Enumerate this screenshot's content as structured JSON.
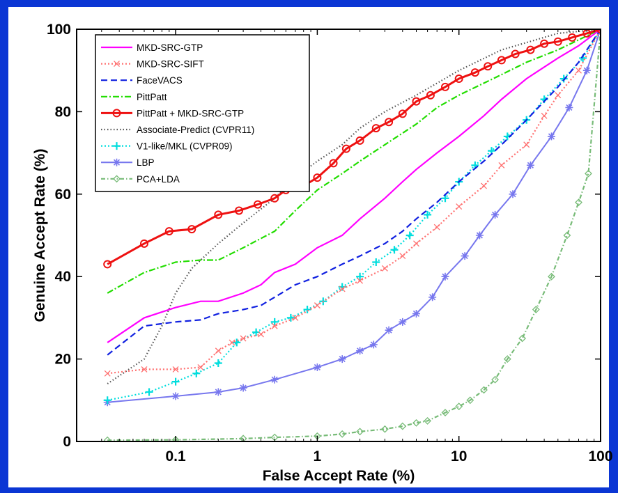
{
  "colors": {
    "frame": "#0b36d4",
    "panel": "#ffffff"
  },
  "chart_data": {
    "type": "line",
    "x_scale": "log",
    "xlabel": "False Accept Rate (%)",
    "ylabel": "Genuine Accept Rate (%)",
    "xlim": [
      0.02,
      100
    ],
    "ylim": [
      0,
      100
    ],
    "x_ticks": [
      0.1,
      1,
      10,
      100
    ],
    "x_tick_labels": [
      "0.1",
      "1",
      "10",
      "100"
    ],
    "y_ticks": [
      0,
      20,
      40,
      60,
      80,
      100
    ],
    "y_tick_labels": [
      "0",
      "20",
      "40",
      "60",
      "80",
      "100"
    ],
    "grid": false,
    "legend_position": "top-left",
    "series": [
      {
        "name": "MKD-SRC-GTP",
        "color": "#ff00ff",
        "dash": "",
        "marker": "none",
        "points": [
          [
            0.033,
            24
          ],
          [
            0.06,
            30
          ],
          [
            0.1,
            32.5
          ],
          [
            0.15,
            34
          ],
          [
            0.2,
            34
          ],
          [
            0.3,
            36
          ],
          [
            0.4,
            38
          ],
          [
            0.5,
            41
          ],
          [
            0.7,
            43
          ],
          [
            1,
            47
          ],
          [
            1.5,
            50
          ],
          [
            2,
            54
          ],
          [
            3,
            59
          ],
          [
            4,
            63
          ],
          [
            5,
            66
          ],
          [
            7,
            70
          ],
          [
            10,
            74
          ],
          [
            15,
            79
          ],
          [
            20,
            83
          ],
          [
            30,
            88
          ],
          [
            50,
            93
          ],
          [
            70,
            96
          ],
          [
            100,
            100
          ]
        ]
      },
      {
        "name": "MKD-SRC-SIFT",
        "color": "#ff7070",
        "dash": "2,3",
        "marker": "x",
        "points": [
          [
            0.033,
            16.5
          ],
          [
            0.06,
            17.5
          ],
          [
            0.1,
            17.5
          ],
          [
            0.15,
            18
          ],
          [
            0.2,
            22
          ],
          [
            0.25,
            24
          ],
          [
            0.3,
            25
          ],
          [
            0.4,
            26
          ],
          [
            0.5,
            28
          ],
          [
            0.7,
            30
          ],
          [
            1,
            33
          ],
          [
            1.5,
            37
          ],
          [
            2,
            39
          ],
          [
            3,
            42
          ],
          [
            4,
            45
          ],
          [
            5,
            48
          ],
          [
            7,
            52
          ],
          [
            10,
            57
          ],
          [
            15,
            62
          ],
          [
            20,
            67
          ],
          [
            30,
            72
          ],
          [
            40,
            79
          ],
          [
            50,
            84
          ],
          [
            70,
            90
          ],
          [
            100,
            100
          ]
        ]
      },
      {
        "name": "FaceVACS",
        "color": "#1020e0",
        "dash": "9,5",
        "marker": "none",
        "points": [
          [
            0.033,
            21
          ],
          [
            0.06,
            28
          ],
          [
            0.1,
            29
          ],
          [
            0.15,
            29.5
          ],
          [
            0.2,
            31
          ],
          [
            0.3,
            32
          ],
          [
            0.4,
            33
          ],
          [
            0.5,
            35
          ],
          [
            0.7,
            38
          ],
          [
            1,
            40
          ],
          [
            1.5,
            43
          ],
          [
            2,
            45
          ],
          [
            3,
            48
          ],
          [
            4,
            51
          ],
          [
            5,
            54
          ],
          [
            7,
            58
          ],
          [
            10,
            63
          ],
          [
            15,
            68
          ],
          [
            20,
            72
          ],
          [
            30,
            78
          ],
          [
            50,
            86
          ],
          [
            70,
            92
          ],
          [
            100,
            100
          ]
        ]
      },
      {
        "name": "PittPatt",
        "color": "#22dd00",
        "dash": "9,3,2,3",
        "marker": "none",
        "points": [
          [
            0.033,
            36
          ],
          [
            0.06,
            41
          ],
          [
            0.1,
            43.5
          ],
          [
            0.15,
            44
          ],
          [
            0.2,
            44
          ],
          [
            0.3,
            47
          ],
          [
            0.5,
            51
          ],
          [
            0.7,
            56
          ],
          [
            1,
            61
          ],
          [
            1.5,
            65
          ],
          [
            2,
            68
          ],
          [
            3,
            72
          ],
          [
            5,
            77
          ],
          [
            7,
            81
          ],
          [
            10,
            84
          ],
          [
            20,
            89
          ],
          [
            30,
            92
          ],
          [
            50,
            95
          ],
          [
            100,
            100
          ]
        ]
      },
      {
        "name": "PittPatt + MKD-SRC-GTP",
        "color": "#ee1111",
        "dash": "",
        "marker": "circle",
        "points": [
          [
            0.033,
            43
          ],
          [
            0.06,
            48
          ],
          [
            0.09,
            51
          ],
          [
            0.13,
            51.5
          ],
          [
            0.2,
            55
          ],
          [
            0.28,
            56
          ],
          [
            0.38,
            57.5
          ],
          [
            0.5,
            59
          ],
          [
            0.6,
            61
          ],
          [
            0.8,
            62
          ],
          [
            1,
            64
          ],
          [
            1.3,
            67.5
          ],
          [
            1.6,
            71
          ],
          [
            2,
            73
          ],
          [
            2.6,
            76
          ],
          [
            3.2,
            77.5
          ],
          [
            4,
            79.5
          ],
          [
            5,
            82.5
          ],
          [
            6.3,
            84
          ],
          [
            8,
            86
          ],
          [
            10,
            88
          ],
          [
            13,
            89.5
          ],
          [
            16,
            91
          ],
          [
            20,
            92.5
          ],
          [
            25,
            94
          ],
          [
            32,
            95
          ],
          [
            40,
            96.5
          ],
          [
            50,
            97
          ],
          [
            63,
            98
          ],
          [
            80,
            99
          ],
          [
            100,
            100
          ]
        ]
      },
      {
        "name": "Associate-Predict (CVPR11)",
        "color": "#555555",
        "dash": "1.5,3",
        "marker": "none",
        "points": [
          [
            0.033,
            14
          ],
          [
            0.06,
            20
          ],
          [
            0.08,
            28
          ],
          [
            0.1,
            36
          ],
          [
            0.13,
            42
          ],
          [
            0.2,
            48
          ],
          [
            0.3,
            53
          ],
          [
            0.5,
            59
          ],
          [
            0.7,
            64
          ],
          [
            1,
            68
          ],
          [
            1.5,
            72
          ],
          [
            2,
            76
          ],
          [
            3,
            80
          ],
          [
            5,
            84
          ],
          [
            10,
            90
          ],
          [
            20,
            95
          ],
          [
            50,
            99
          ],
          [
            100,
            100
          ]
        ]
      },
      {
        "name": "V1-like/MKL (CVPR09)",
        "color": "#00dddd",
        "dash": "2,3",
        "marker": "plus",
        "points": [
          [
            0.033,
            10
          ],
          [
            0.065,
            12
          ],
          [
            0.1,
            14.5
          ],
          [
            0.14,
            16.5
          ],
          [
            0.2,
            19
          ],
          [
            0.27,
            24
          ],
          [
            0.37,
            26.5
          ],
          [
            0.5,
            29
          ],
          [
            0.65,
            30
          ],
          [
            0.85,
            32
          ],
          [
            1.1,
            34
          ],
          [
            1.5,
            37.5
          ],
          [
            2,
            40
          ],
          [
            2.6,
            43.5
          ],
          [
            3.5,
            46.5
          ],
          [
            4.5,
            50
          ],
          [
            6,
            55
          ],
          [
            8,
            59
          ],
          [
            10,
            63
          ],
          [
            13,
            67
          ],
          [
            17,
            70.5
          ],
          [
            22,
            74
          ],
          [
            30,
            78
          ],
          [
            40,
            83
          ],
          [
            55,
            88
          ],
          [
            75,
            93
          ],
          [
            100,
            100
          ]
        ]
      },
      {
        "name": "LBP",
        "color": "#7777ee",
        "dash": "",
        "marker": "star",
        "points": [
          [
            0.033,
            9.5
          ],
          [
            0.1,
            11
          ],
          [
            0.2,
            12
          ],
          [
            0.3,
            13
          ],
          [
            0.5,
            15
          ],
          [
            1,
            18
          ],
          [
            1.5,
            20
          ],
          [
            2,
            22
          ],
          [
            2.5,
            23.5
          ],
          [
            3.2,
            27
          ],
          [
            4,
            29
          ],
          [
            5,
            31
          ],
          [
            6.5,
            35
          ],
          [
            8,
            40
          ],
          [
            11,
            45
          ],
          [
            14,
            50
          ],
          [
            18,
            55
          ],
          [
            24,
            60
          ],
          [
            32,
            67
          ],
          [
            45,
            74
          ],
          [
            60,
            81
          ],
          [
            80,
            90
          ],
          [
            100,
            100
          ]
        ]
      },
      {
        "name": "PCA+LDA",
        "color": "#77bb77",
        "dash": "6,3,1.5,3",
        "marker": "diamond",
        "points": [
          [
            0.033,
            0.3
          ],
          [
            0.1,
            0.4
          ],
          [
            0.3,
            0.7
          ],
          [
            0.5,
            1
          ],
          [
            1,
            1.3
          ],
          [
            1.5,
            1.8
          ],
          [
            2,
            2.4
          ],
          [
            3,
            3
          ],
          [
            4,
            3.7
          ],
          [
            5,
            4.5
          ],
          [
            6,
            5
          ],
          [
            8,
            7
          ],
          [
            10,
            8.5
          ],
          [
            12,
            10
          ],
          [
            15,
            12.5
          ],
          [
            18,
            15
          ],
          [
            22,
            20
          ],
          [
            28,
            25
          ],
          [
            35,
            32
          ],
          [
            45,
            40
          ],
          [
            58,
            50
          ],
          [
            70,
            58
          ],
          [
            82,
            65
          ],
          [
            100,
            100
          ]
        ]
      }
    ]
  }
}
